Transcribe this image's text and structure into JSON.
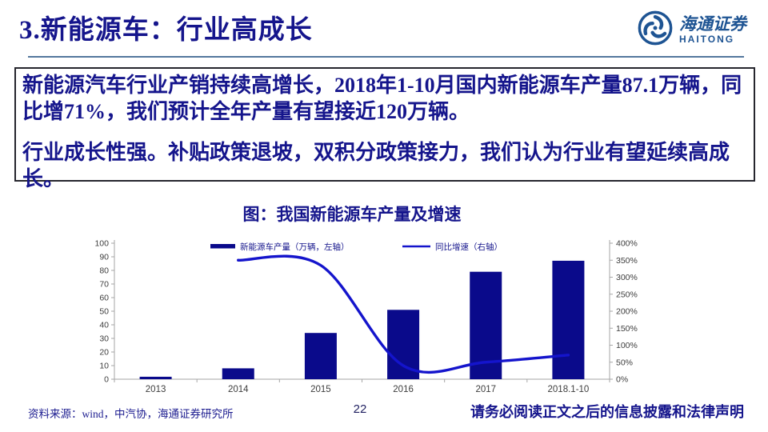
{
  "header": {
    "title": "3.新能源车：行业高成长",
    "logo": {
      "cn": "海通证券",
      "en": "HAITONG"
    }
  },
  "summary": {
    "para1": "新能源汽车行业产销持续高增长，2018年1-10月国内新能源车产量87.1万辆，同比增71%，我们预计全年产量有望接近120万辆。",
    "para2": "行业成长性强。补贴政策退坡，双积分政策接力，我们认为行业有望延续高成长。"
  },
  "chart": {
    "title": "图：我国新能源车产量及增速"
  },
  "chart_data": {
    "type": "bar",
    "subtype": "bar+line combo, dual axis",
    "title": "图：我国新能源车产量及增速",
    "categories": [
      "2013",
      "2014",
      "2015",
      "2016",
      "2017",
      "2018.1-10"
    ],
    "series": [
      {
        "name": "新能源车产量（万辆，左轴）",
        "type": "bar",
        "axis": "left",
        "color": "#0a0a8b",
        "values": [
          1.8,
          8,
          34,
          51,
          79,
          87.1
        ]
      },
      {
        "name": "同比增速（右轴）",
        "type": "line",
        "axis": "right",
        "unit": "%",
        "color": "#1414cc",
        "values": [
          null,
          350,
          335,
          40,
          50,
          71
        ]
      }
    ],
    "left_axis": {
      "min": 0,
      "max": 100,
      "step": 10
    },
    "right_axis": {
      "min": 0,
      "max": 400,
      "step": 50,
      "suffix": "%"
    },
    "legend_position": "top",
    "grid": false
  },
  "footer": {
    "source": "资料来源：wind，中汽协，海通证券研究所",
    "page": "22",
    "disclaimer": "请务必阅读正文之后的信息披露和法律声明"
  },
  "colors": {
    "accent_navy": "#15158c",
    "bar_navy": "#0a0a8b",
    "line_blue": "#1414cc",
    "logo_blue": "#1e5493",
    "rule_blue": "#54789e",
    "axis_gray": "#a6a6a6",
    "tick_text": "#3d3d3d"
  }
}
